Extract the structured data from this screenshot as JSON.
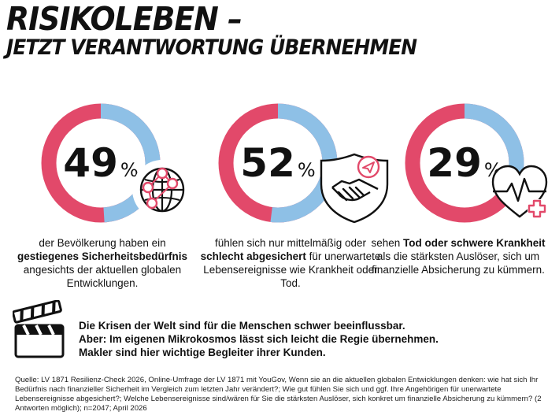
{
  "title": {
    "line1": "RISIKOLEBEN –",
    "line2": "JETZT VERANTWORTUNG ÜBERNEHMEN"
  },
  "colors": {
    "accent": "#e2496a",
    "secondary": "#8ec0e6",
    "text": "#111111"
  },
  "chart_data": {
    "type": "pie",
    "series": [
      {
        "value": 49,
        "label": "49",
        "unit": "%",
        "icon": "globe-network-icon",
        "text_before": "der Bevölkerung haben ein ",
        "text_bold": "gestiegenes Sicherheitsbedürfnis",
        "text_after": " angesichts der aktuellen globalen Entwicklungen."
      },
      {
        "value": 52,
        "label": "52",
        "unit": "%",
        "icon": "handshake-shield-icon",
        "text_before": "fühlen sich nur mittelmäßig oder ",
        "text_bold": "schlecht abgesichert",
        "text_after": " für unerwartete Lebensereignisse wie Krankheit oder Tod."
      },
      {
        "value": 29,
        "label": "29",
        "unit": "%",
        "icon": "heart-pulse-icon",
        "text_before": "sehen ",
        "text_bold": "Tod oder schwere Krankheit",
        "text_after": " als die stärksten Auslöser, sich um finanzielle Absicherung zu kümmern."
      }
    ]
  },
  "message": {
    "icon": "clapperboard-icon",
    "line1": "Die Krisen der Welt sind für die Menschen schwer beeinflussbar.",
    "line2": "Aber: Im eigenen Mikrokosmos lässt sich leicht die Regie übernehmen.",
    "line3": "Makler sind hier wichtige Begleiter ihrer Kunden."
  },
  "source": {
    "text": "Quelle: LV 1871 Resilienz-Check 2026, Online-Umfrage der LV 1871 mit YouGov, Wenn sie an die aktuellen globalen Entwicklungen denken: wie hat sich Ihr Bedürfnis nach finanzieller Sicherheit im Vergleich zum letzten Jahr verändert?; Wie gut fühlen Sie sich und ggf. Ihre Angehörigen für unerwartete Lebensereignisse abgesichert?; Welche Lebensereignisse sind/wären für Sie die stärksten Auslöser, sich konkret um finanzielle Absicherung zu kümmern? (2 Antworten möglich); n=2047; April 2026"
  }
}
